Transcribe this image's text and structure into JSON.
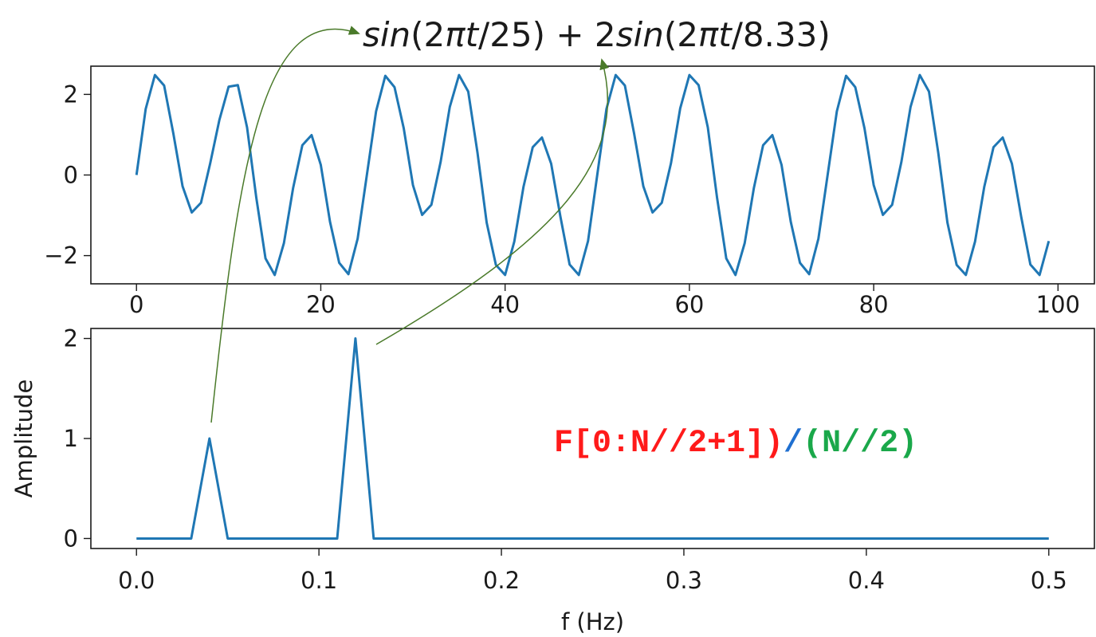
{
  "colors": {
    "line": "#1f77b4",
    "arrow": "#4a7a2a",
    "code_red": "#ff1a1a",
    "code_blue": "#1f6fd0",
    "code_green": "#1aa84a"
  },
  "title": {
    "part1": "sin",
    "part2": "(2",
    "part3": "π",
    "part4": "t",
    "part5": "/25) + 2",
    "part6": "sin",
    "part7": "(2",
    "part8": "π",
    "part9": "t",
    "part10": "/8.33)"
  },
  "formula": {
    "red": "F[0:N//2+1])",
    "blue": "/",
    "green": "(N//2)"
  },
  "chart_data": [
    {
      "type": "line",
      "title": "sin(2πt/25) + 2sin(2πt/8.33)",
      "xlabel": "",
      "ylabel": "",
      "xlim": [
        -4.95,
        103.95
      ],
      "ylim": [
        -2.7,
        2.7
      ],
      "xticks": [
        0,
        20,
        40,
        60,
        80,
        100
      ],
      "yticks": [
        -2,
        0,
        2
      ],
      "x": [
        0,
        1,
        2,
        3,
        4,
        5,
        6,
        7,
        8,
        9,
        10,
        11,
        12,
        13,
        14,
        15,
        16,
        17,
        18,
        19,
        20,
        21,
        22,
        23,
        24,
        25,
        26,
        27,
        28,
        29,
        30,
        31,
        32,
        33,
        34,
        35,
        36,
        37,
        38,
        39,
        40,
        41,
        42,
        43,
        44,
        45,
        46,
        47,
        48,
        49,
        50,
        51,
        52,
        53,
        54,
        55,
        56,
        57,
        58,
        59,
        60,
        61,
        62,
        63,
        64,
        65,
        66,
        67,
        68,
        69,
        70,
        71,
        72,
        73,
        74,
        75,
        76,
        77,
        78,
        79,
        80,
        81,
        82,
        83,
        84,
        85,
        86,
        87,
        88,
        89,
        90,
        91,
        92,
        93,
        94,
        95,
        96,
        97,
        98,
        99
      ],
      "y": [
        0.0,
        1.64,
        2.48,
        2.22,
        1.03,
        -0.28,
        -0.93,
        -0.69,
        0.29,
        1.37,
        2.19,
        2.23,
        1.18,
        -0.56,
        -2.07,
        -2.48,
        -1.69,
        -0.32,
        0.74,
        0.99,
        0.25,
        -1.16,
        -2.18,
        -2.46,
        -1.58,
        0.0,
        1.58,
        2.46,
        2.18,
        1.16,
        -0.25,
        -0.99,
        -0.74,
        0.32,
        1.69,
        2.48,
        2.07,
        0.56,
        -1.18,
        -2.23,
        -2.48,
        -1.65,
        -0.29,
        0.69,
        0.93,
        0.28,
        -1.03,
        -2.22,
        -2.48,
        -1.64,
        0.0,
        1.64,
        2.48,
        2.22,
        1.03,
        -0.28,
        -0.93,
        -0.69,
        0.29,
        1.65,
        2.48,
        2.23,
        1.18,
        -0.56,
        -2.07,
        -2.48,
        -1.69,
        -0.32,
        0.74,
        0.99,
        0.25,
        -1.16,
        -2.18,
        -2.46,
        -1.58,
        0.0,
        1.58,
        2.46,
        2.18,
        1.16,
        -0.25,
        -0.99,
        -0.74,
        0.32,
        1.69,
        2.48,
        2.07,
        0.56,
        -1.18,
        -2.23,
        -2.48,
        -1.65,
        -0.29,
        0.69,
        0.93,
        0.28,
        -1.03,
        -2.22,
        -2.48,
        -1.64
      ],
      "grid": false
    },
    {
      "type": "line",
      "title": "",
      "xlabel": "f (Hz)",
      "ylabel": "Amplitude",
      "xlim": [
        -0.025,
        0.525
      ],
      "ylim": [
        -0.1,
        2.1
      ],
      "xticks": [
        0.0,
        0.1,
        0.2,
        0.3,
        0.4,
        0.5
      ],
      "xtick_labels": [
        "0.0",
        "0.1",
        "0.2",
        "0.3",
        "0.4",
        "0.5"
      ],
      "yticks": [
        0,
        1,
        2
      ],
      "x": [
        0.0,
        0.01,
        0.02,
        0.03,
        0.04,
        0.05,
        0.06,
        0.07,
        0.08,
        0.09,
        0.1,
        0.11,
        0.12,
        0.13,
        0.14,
        0.15,
        0.16,
        0.17,
        0.18,
        0.19,
        0.2,
        0.21,
        0.22,
        0.23,
        0.24,
        0.25,
        0.26,
        0.27,
        0.28,
        0.29,
        0.3,
        0.31,
        0.32,
        0.33,
        0.34,
        0.35,
        0.36,
        0.37,
        0.38,
        0.39,
        0.4,
        0.41,
        0.42,
        0.43,
        0.44,
        0.45,
        0.46,
        0.47,
        0.48,
        0.49,
        0.5
      ],
      "y": [
        0,
        0,
        0,
        0,
        1,
        0,
        0,
        0,
        0,
        0,
        0,
        0,
        2,
        0,
        0,
        0,
        0,
        0,
        0,
        0,
        0,
        0,
        0,
        0,
        0,
        0,
        0,
        0,
        0,
        0,
        0,
        0,
        0,
        0,
        0,
        0,
        0,
        0,
        0,
        0,
        0,
        0,
        0,
        0,
        0,
        0,
        0,
        0,
        0,
        0,
        0
      ],
      "grid": false
    }
  ]
}
